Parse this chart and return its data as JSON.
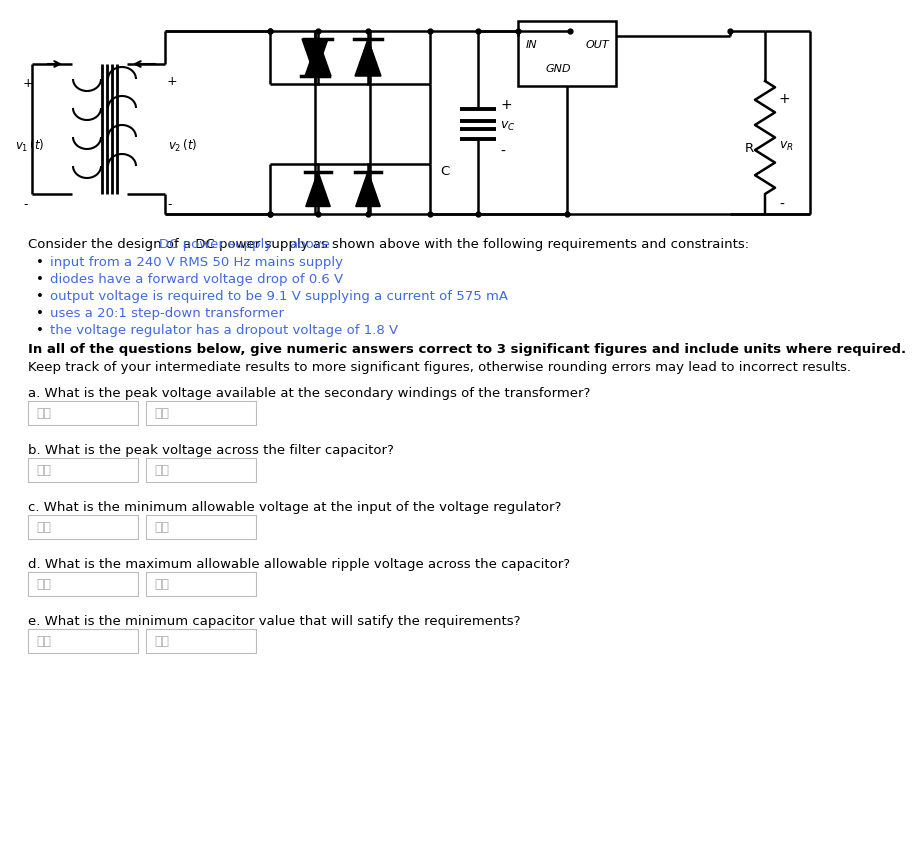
{
  "bg_color": "#ffffff",
  "circuit_description_pre": "Consider the design of a ",
  "circuit_description_blue": "DC power supply",
  "circuit_description_mid": " as shown ",
  "circuit_description_blue2": "above",
  "circuit_description_post": " with the following requirements and constraints:",
  "bullet_points": [
    "input from a 240 V RMS 50 Hz mains supply",
    "diodes have a forward voltage drop of 0.6 V",
    "output voltage is required to be 9.1 V supplying a current of 575 mA",
    "uses a 20:1 step-down transformer",
    "the voltage regulator has a dropout voltage of 1.8 V"
  ],
  "bold_line": "In all of the questions below, give numeric answers correct to 3 significant figures and include units where required.",
  "keep_track_line": "Keep track of your intermediate results to more significant figures, otherwise rounding errors may lead to incorrect results.",
  "questions": [
    "a. What is the peak voltage available at the secondary windings of the transformer?",
    "b. What is the peak voltage across the filter capacitor?",
    "c. What is the minimum allowable voltage at the input of the voltage regulator?",
    "d. What is the maximum allowable allowable ripple voltage across the capacitor?",
    "e. What is the minimum capacitor value that will satify the requirements?"
  ],
  "input_placeholder1": "数字",
  "input_placeholder2": "单位",
  "blue_color": "#4169e1",
  "text_color": "#000000",
  "figsize": [
    8.27,
    8.43
  ]
}
